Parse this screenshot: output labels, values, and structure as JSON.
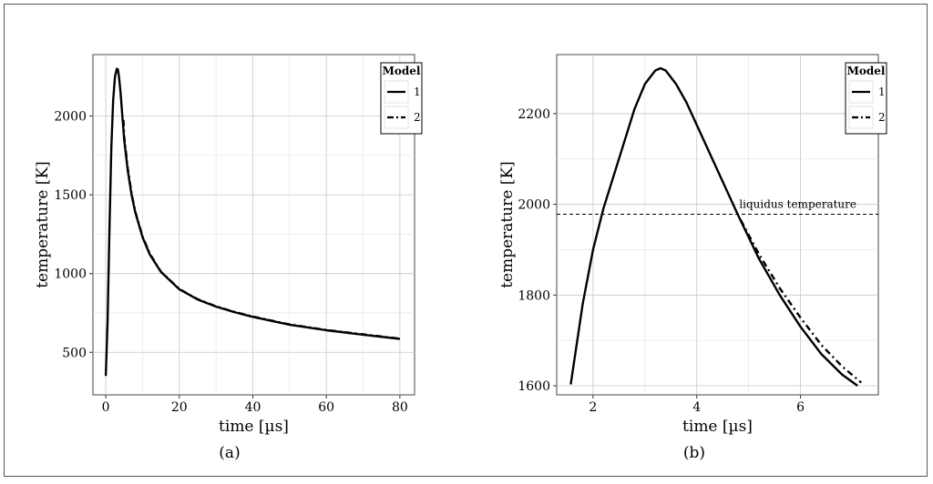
{
  "chart_data": [
    {
      "type": "line",
      "caption": "(a)",
      "xlabel": "time [µs]",
      "ylabel": "temperature [K]",
      "xlim": [
        -3.5,
        84
      ],
      "ylim": [
        230,
        2390
      ],
      "xticks": [
        0,
        20,
        40,
        60,
        80
      ],
      "yticks": [
        500,
        1000,
        1500,
        2000
      ],
      "grid": true,
      "legend": {
        "title": "Model",
        "position": "top-right",
        "entries": [
          "1",
          "2"
        ]
      },
      "series": [
        {
          "name": "1",
          "style": "solid",
          "x": [
            0,
            0.5,
            1,
            1.5,
            2,
            2.5,
            3,
            3.3,
            3.6,
            4,
            5,
            6,
            7,
            8,
            10,
            12,
            15,
            20,
            25,
            30,
            35,
            40,
            50,
            60,
            70,
            80
          ],
          "y": [
            350,
            700,
            1300,
            1800,
            2100,
            2250,
            2300,
            2295,
            2250,
            2150,
            1850,
            1650,
            1500,
            1390,
            1230,
            1120,
            1010,
            900,
            835,
            790,
            755,
            725,
            675,
            640,
            612,
            585
          ]
        },
        {
          "name": "2",
          "style": "dashdot",
          "x": [
            4.8,
            5,
            6,
            7,
            8,
            10,
            12,
            15,
            20,
            25,
            30,
            35,
            40,
            50,
            60,
            70,
            80
          ],
          "y": [
            1975,
            1870,
            1665,
            1510,
            1395,
            1235,
            1125,
            1012,
            902,
            837,
            792,
            757,
            727,
            677,
            642,
            614,
            587
          ]
        }
      ]
    },
    {
      "type": "line",
      "caption": "(b)",
      "xlabel": "time [µs]",
      "ylabel": "temperature [K]",
      "xlim": [
        1.3,
        7.5
      ],
      "ylim": [
        1580,
        2330
      ],
      "xticks": [
        2,
        4,
        6
      ],
      "yticks": [
        1600,
        1800,
        2000,
        2200
      ],
      "grid": true,
      "legend": {
        "title": "Model",
        "position": "top-right",
        "entries": [
          "1",
          "2"
        ]
      },
      "annotations": [
        {
          "type": "hline",
          "y": 1978,
          "style": "dashed",
          "label": "liquidus temperature"
        }
      ],
      "series": [
        {
          "name": "1",
          "style": "solid",
          "x": [
            1.57,
            1.8,
            2.0,
            2.2,
            2.5,
            2.8,
            3.0,
            3.2,
            3.3,
            3.4,
            3.6,
            3.8,
            4.0,
            4.2,
            4.5,
            4.8,
            5.2,
            5.6,
            6.0,
            6.4,
            6.8,
            7.1
          ],
          "y": [
            1603,
            1780,
            1900,
            1990,
            2100,
            2210,
            2265,
            2295,
            2300,
            2295,
            2265,
            2225,
            2175,
            2125,
            2050,
            1975,
            1880,
            1800,
            1730,
            1670,
            1625,
            1600
          ]
        },
        {
          "name": "2",
          "style": "dashdot",
          "x": [
            4.85,
            5.2,
            5.6,
            6.0,
            6.4,
            6.8,
            7.17
          ],
          "y": [
            1965,
            1890,
            1815,
            1750,
            1690,
            1643,
            1607
          ]
        }
      ]
    }
  ]
}
